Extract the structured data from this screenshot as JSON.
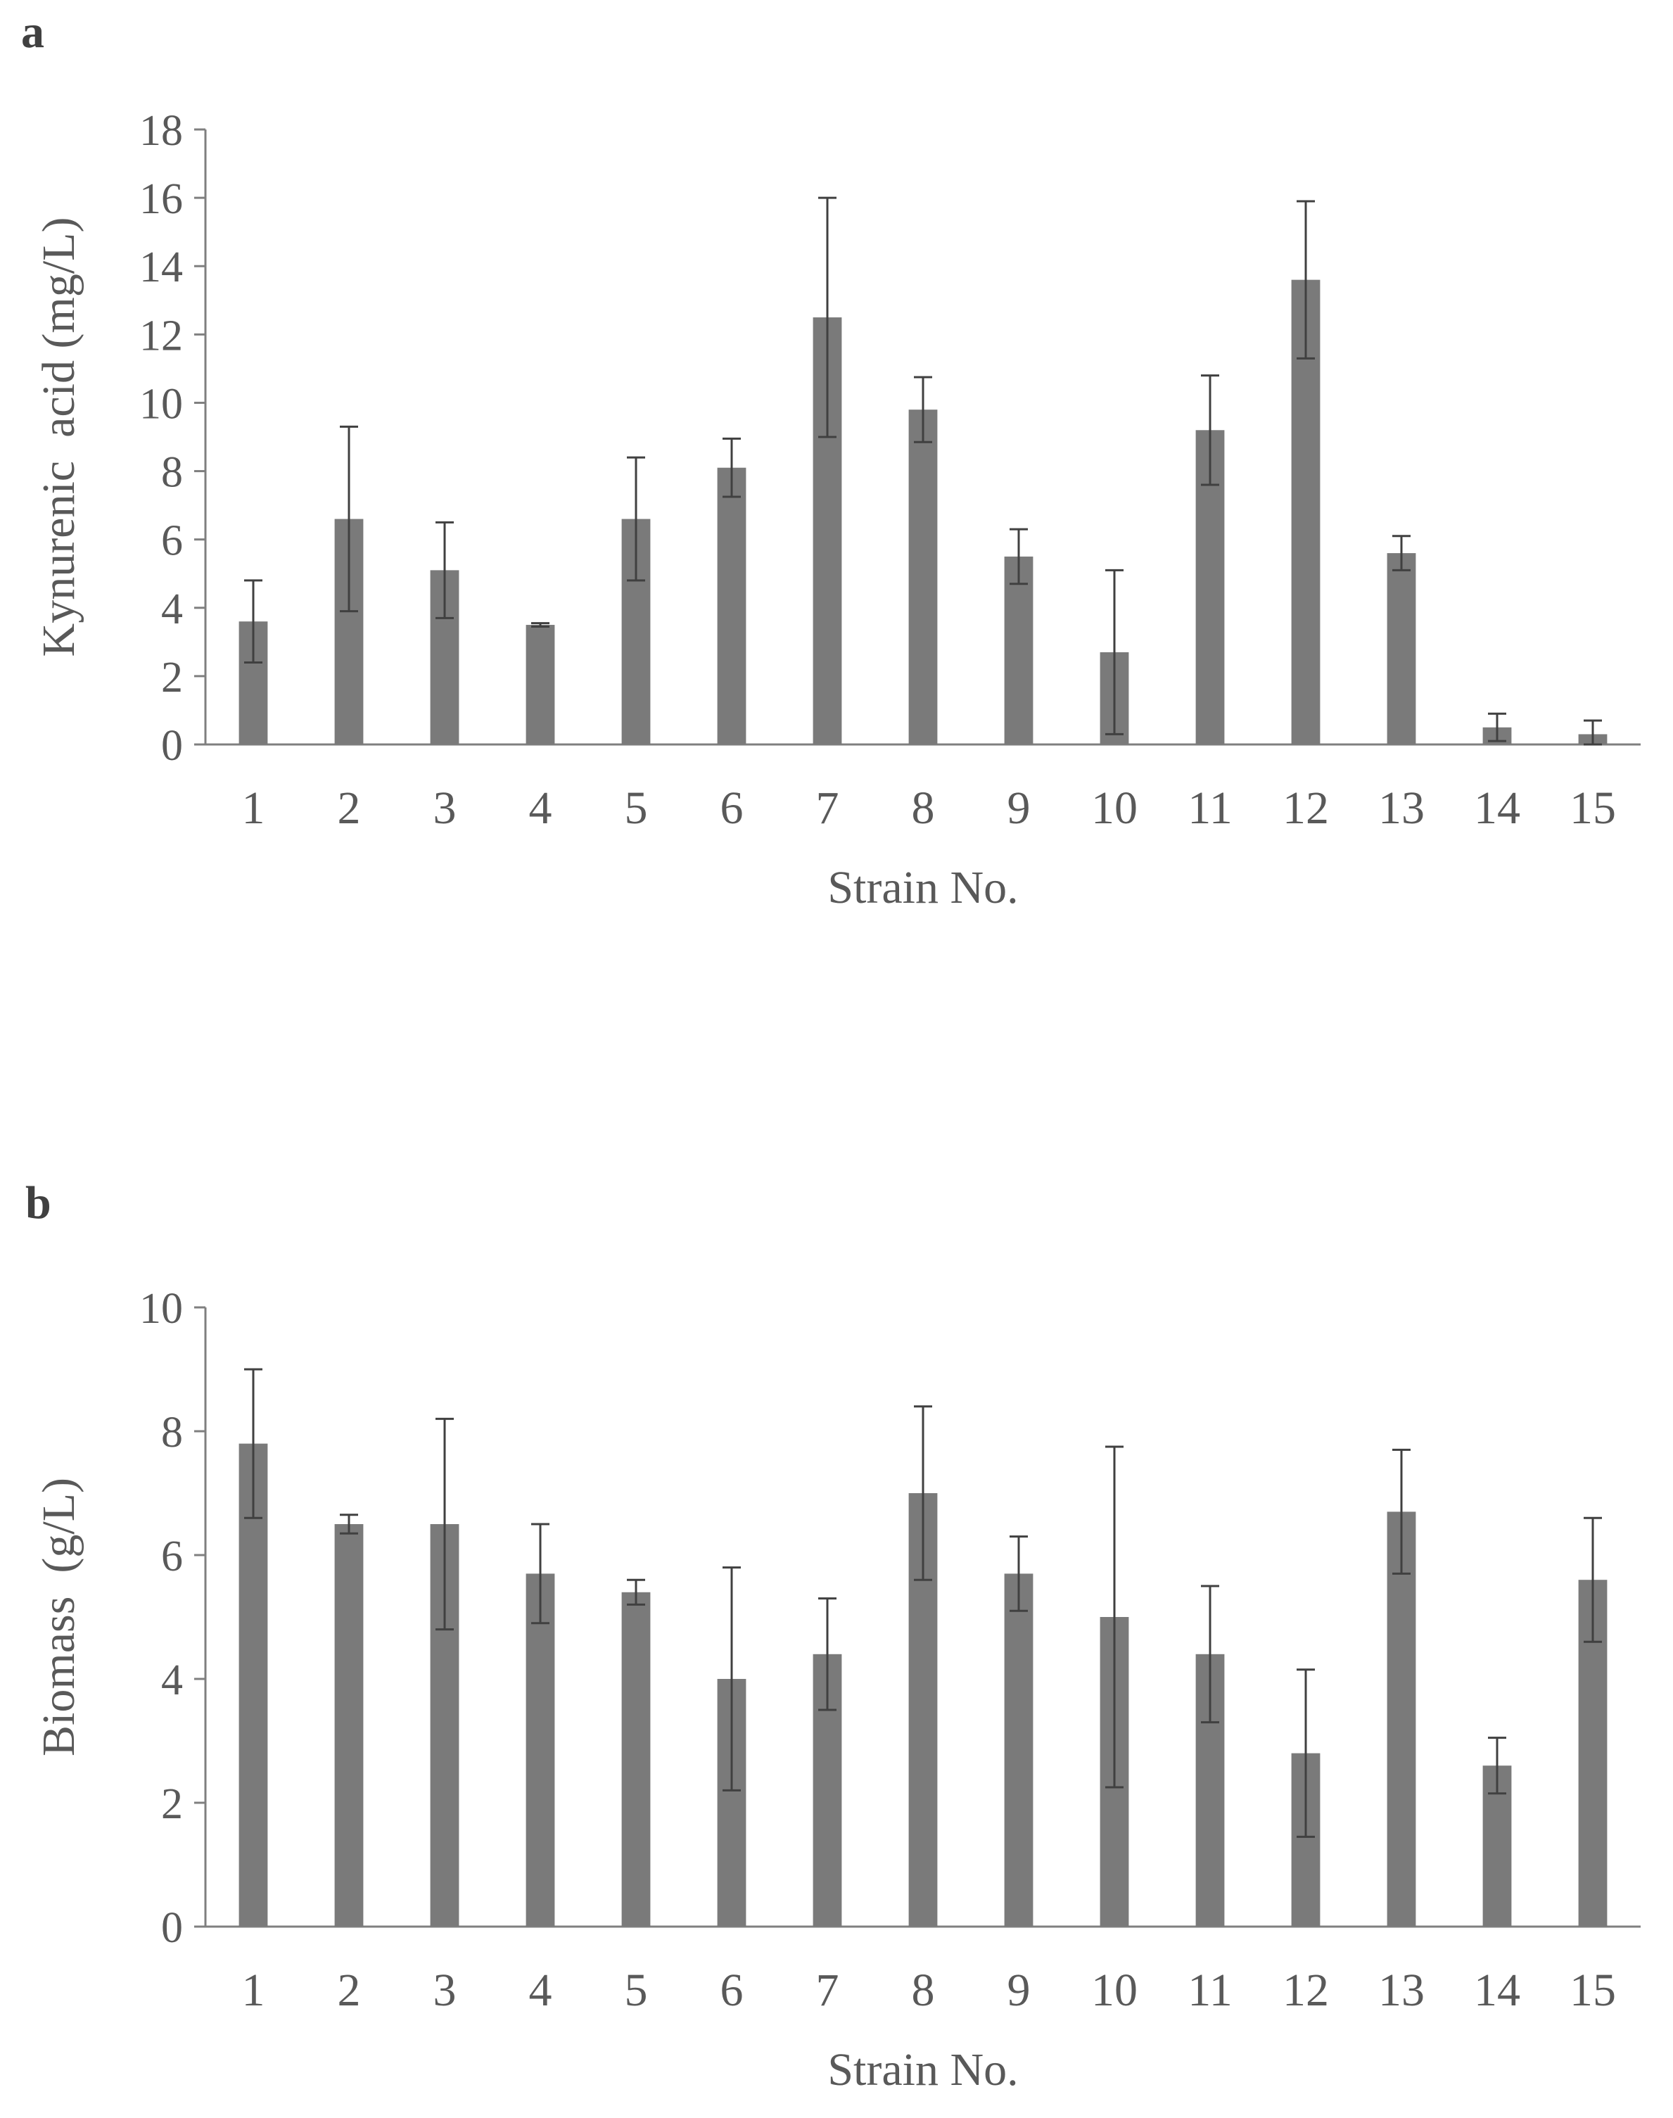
{
  "chart_data": [
    {
      "panel": "a",
      "type": "bar",
      "categories": [
        "1",
        "2",
        "3",
        "4",
        "5",
        "6",
        "7",
        "8",
        "9",
        "10",
        "11",
        "12",
        "13",
        "14",
        "15"
      ],
      "values": [
        3.6,
        6.6,
        5.1,
        3.5,
        6.6,
        8.1,
        12.5,
        9.8,
        5.5,
        2.7,
        9.2,
        13.6,
        5.6,
        0.5,
        0.3
      ],
      "errors": [
        1.2,
        2.7,
        1.4,
        0.05,
        1.8,
        0.85,
        3.5,
        0.95,
        0.8,
        2.4,
        1.6,
        2.3,
        0.5,
        0.4,
        0.4
      ],
      "xlabel": "Strain No.",
      "ylabel": "Kynurenic  acid (mg/L)",
      "ylim": [
        0,
        18
      ],
      "yticks": [
        "0",
        "2",
        "4",
        "6",
        "8",
        "10",
        "12",
        "14",
        "16",
        "18"
      ],
      "color": "#7a7a7a"
    },
    {
      "panel": "b",
      "type": "bar",
      "categories": [
        "1",
        "2",
        "3",
        "4",
        "5",
        "6",
        "7",
        "8",
        "9",
        "10",
        "11",
        "12",
        "13",
        "14",
        "15"
      ],
      "values": [
        7.8,
        6.5,
        6.5,
        5.7,
        5.4,
        4.0,
        4.4,
        7.0,
        5.7,
        5.0,
        4.4,
        2.8,
        6.7,
        2.6,
        5.6
      ],
      "errors": [
        1.2,
        0.15,
        1.7,
        0.8,
        0.2,
        1.8,
        0.9,
        1.4,
        0.6,
        2.75,
        1.1,
        1.35,
        1.0,
        0.45,
        1.0
      ],
      "xlabel": "Strain No.",
      "ylabel": "Biomass  (g/L)",
      "ylim": [
        0,
        10
      ],
      "yticks": [
        "0",
        "2",
        "4",
        "6",
        "8",
        "10"
      ],
      "color": "#7a7a7a"
    }
  ],
  "panels": {
    "a": "a",
    "b": "b"
  },
  "colors": {
    "bar": "#7a7a7a",
    "axis": "#7f7f7f",
    "error": "#404040",
    "text": "#595959"
  }
}
